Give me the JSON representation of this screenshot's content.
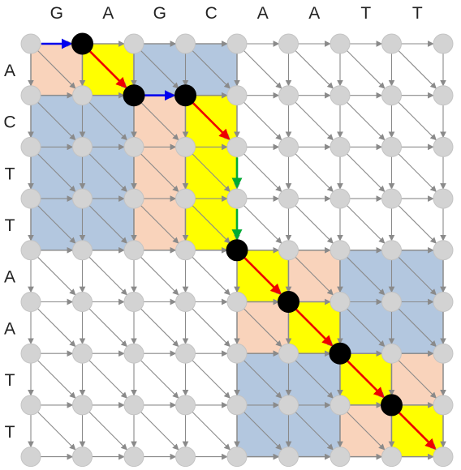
{
  "top_sequence": [
    "G",
    "A",
    "G",
    "C",
    "A",
    "A",
    "T",
    "T"
  ],
  "left_sequence": [
    "A",
    "C",
    "T",
    "T",
    "A",
    "A",
    "T",
    "T"
  ],
  "colors": {
    "blue_block": "#b3c7df",
    "peach_block": "#f9d3bb",
    "yellow_block": "#ffff00",
    "grid_edge": "#8a8a8a",
    "node": "#d3d3d3",
    "path_node": "#000000",
    "horizontal_step": "#0000ee",
    "diagonal_step": "#ee0000",
    "vertical_step": "#00aa33"
  },
  "shaded_blocks": [
    {
      "row": 0,
      "col": 0,
      "rows": 1,
      "cols": 1,
      "color": "peach"
    },
    {
      "row": 0,
      "col": 1,
      "rows": 1,
      "cols": 1,
      "color": "yellow"
    },
    {
      "row": 0,
      "col": 2,
      "rows": 1,
      "cols": 2,
      "color": "blue"
    },
    {
      "row": 1,
      "col": 0,
      "rows": 3,
      "cols": 2,
      "color": "blue"
    },
    {
      "row": 1,
      "col": 2,
      "rows": 3,
      "cols": 1,
      "color": "peach"
    },
    {
      "row": 1,
      "col": 3,
      "rows": 3,
      "cols": 1,
      "color": "yellow"
    },
    {
      "row": 4,
      "col": 4,
      "rows": 1,
      "cols": 1,
      "color": "yellow"
    },
    {
      "row": 4,
      "col": 5,
      "rows": 1,
      "cols": 1,
      "color": "peach"
    },
    {
      "row": 4,
      "col": 6,
      "rows": 2,
      "cols": 2,
      "color": "blue"
    },
    {
      "row": 5,
      "col": 4,
      "rows": 1,
      "cols": 1,
      "color": "peach"
    },
    {
      "row": 5,
      "col": 5,
      "rows": 1,
      "cols": 1,
      "color": "yellow"
    },
    {
      "row": 6,
      "col": 4,
      "rows": 2,
      "cols": 2,
      "color": "blue"
    },
    {
      "row": 6,
      "col": 6,
      "rows": 1,
      "cols": 1,
      "color": "yellow"
    },
    {
      "row": 6,
      "col": 7,
      "rows": 1,
      "cols": 1,
      "color": "peach"
    },
    {
      "row": 7,
      "col": 6,
      "rows": 1,
      "cols": 1,
      "color": "peach"
    },
    {
      "row": 7,
      "col": 7,
      "rows": 1,
      "cols": 1,
      "color": "yellow"
    }
  ],
  "alignment_path": [
    {
      "from": [
        0,
        0
      ],
      "to": [
        0,
        1
      ],
      "type": "horizontal"
    },
    {
      "from": [
        0,
        1
      ],
      "to": [
        1,
        2
      ],
      "type": "diagonal"
    },
    {
      "from": [
        1,
        2
      ],
      "to": [
        1,
        3
      ],
      "type": "horizontal"
    },
    {
      "from": [
        1,
        3
      ],
      "to": [
        2,
        4
      ],
      "type": "diagonal"
    },
    {
      "from": [
        2,
        4
      ],
      "to": [
        3,
        4
      ],
      "type": "vertical"
    },
    {
      "from": [
        3,
        4
      ],
      "to": [
        4,
        4
      ],
      "type": "vertical"
    },
    {
      "from": [
        4,
        4
      ],
      "to": [
        5,
        5
      ],
      "type": "diagonal"
    },
    {
      "from": [
        5,
        5
      ],
      "to": [
        6,
        6
      ],
      "type": "diagonal"
    },
    {
      "from": [
        6,
        6
      ],
      "to": [
        7,
        7
      ],
      "type": "diagonal"
    },
    {
      "from": [
        7,
        7
      ],
      "to": [
        8,
        8
      ],
      "type": "diagonal"
    }
  ],
  "path_nodes": [
    [
      0,
      1
    ],
    [
      1,
      2
    ],
    [
      1,
      3
    ],
    [
      4,
      4
    ],
    [
      5,
      5
    ],
    [
      6,
      6
    ],
    [
      7,
      7
    ]
  ]
}
